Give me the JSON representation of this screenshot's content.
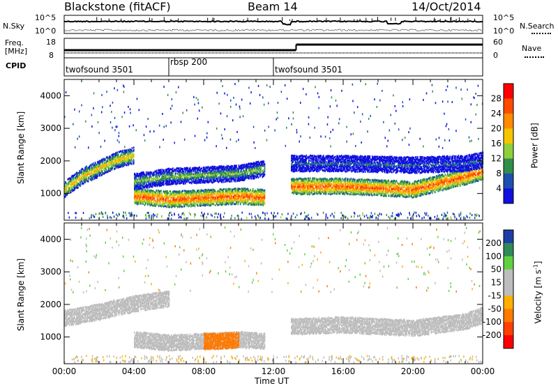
{
  "header": {
    "station": "Blackstone (fitACF)",
    "beam": "Beam 14",
    "date": "14/Oct/2014"
  },
  "top_panels": {
    "nsky_label": "N.Sky",
    "nsearch_label": "N.Search",
    "noise_ticks": [
      "10^5",
      "10^0"
    ],
    "freq_label_1": "Freq.",
    "freq_label_2": "[MHz]",
    "freq_ticks": [
      "18",
      "8"
    ],
    "nave_label": "Nave",
    "nave_ticks": [
      "60",
      "0"
    ],
    "cpid_label": "CPID",
    "cpid_segments": [
      {
        "name": "twofsound 3501",
        "start_hour": 0.0,
        "end_hour": 6.0
      },
      {
        "name": "rbsp 200",
        "start_hour": 6.0,
        "end_hour": 12.0
      },
      {
        "name": "twofsound 3501",
        "start_hour": 12.0,
        "end_hour": 24.0
      }
    ]
  },
  "chart_data": [
    {
      "type": "heatmap",
      "panel": "power",
      "ylabel": "Slant Range [km]",
      "ylim": [
        180,
        4500
      ],
      "yticks": [
        "1000",
        "2000",
        "3000",
        "4000"
      ],
      "colorbar_label": "Power [dB]",
      "colorbar_ticks": [
        "28",
        "24",
        "20",
        "16",
        "12",
        "8",
        "4"
      ],
      "colorbar_colors": [
        "#ff0000",
        "#ff4b00",
        "#ff8c00",
        "#f5c500",
        "#8fd03a",
        "#2f8f48",
        "#1d4fb0",
        "#1010e0"
      ],
      "bands": [
        {
          "hours": [
            0,
            1,
            2,
            3,
            4
          ],
          "range_km": [
            1150,
            1550,
            1800,
            2050,
            2200
          ],
          "power_db": 20
        },
        {
          "hours": [
            4,
            6,
            8,
            10,
            11.5
          ],
          "range_km": [
            950,
            850,
            900,
            950,
            900
          ],
          "power_db": 26
        },
        {
          "hours": [
            4,
            6,
            8,
            10,
            11.5
          ],
          "range_km": [
            1400,
            1550,
            1600,
            1650,
            1800
          ],
          "power_db": 14
        },
        {
          "hours": [
            13,
            16,
            20,
            23,
            24
          ],
          "range_km": [
            1250,
            1250,
            1150,
            1550,
            1700
          ],
          "power_db": 26
        },
        {
          "hours": [
            13,
            16,
            20,
            23,
            24
          ],
          "range_km": [
            1950,
            1950,
            1900,
            1950,
            2050
          ],
          "power_db": 8
        }
      ]
    },
    {
      "type": "heatmap",
      "panel": "velocity",
      "xlabel": "Time UT",
      "ylabel": "Slant Range [km]",
      "xlim": [
        0,
        24
      ],
      "ylim": [
        180,
        4500
      ],
      "xticks": [
        "00:00",
        "04:00",
        "08:00",
        "12:00",
        "16:00",
        "20:00",
        "00:00"
      ],
      "yticks": [
        "1000",
        "2000",
        "3000",
        "4000"
      ],
      "colorbar_label": "Velocity [m s^-1]",
      "colorbar_ticks": [
        "200",
        "100",
        "50",
        "15",
        "-15",
        "-50",
        "-100",
        "-200"
      ],
      "colorbar_colors": [
        "#1e3ea8",
        "#2e8b57",
        "#5fd040",
        "#bdbdbd",
        "#bdbdbd",
        "#ffb000",
        "#ff7a00",
        "#ff4000",
        "#ff0000"
      ],
      "bands": [
        {
          "hours": [
            0,
            2,
            4,
            6
          ],
          "range_km": [
            1600,
            1800,
            2050,
            2200
          ],
          "velocity": 0
        },
        {
          "hours": [
            4,
            6,
            8,
            10,
            11.5
          ],
          "range_km": [
            950,
            850,
            900,
            950,
            900
          ],
          "velocity": 0
        },
        {
          "hours": [
            13,
            16,
            20,
            23,
            24
          ],
          "range_km": [
            1350,
            1400,
            1300,
            1500,
            1700
          ],
          "velocity": 0
        },
        {
          "hours": [
            8,
            9,
            10
          ],
          "range_km": [
            900,
            900,
            950
          ],
          "velocity": -50
        }
      ]
    }
  ],
  "ui_colors": {
    "frame": "#000000",
    "background": "#ffffff"
  }
}
